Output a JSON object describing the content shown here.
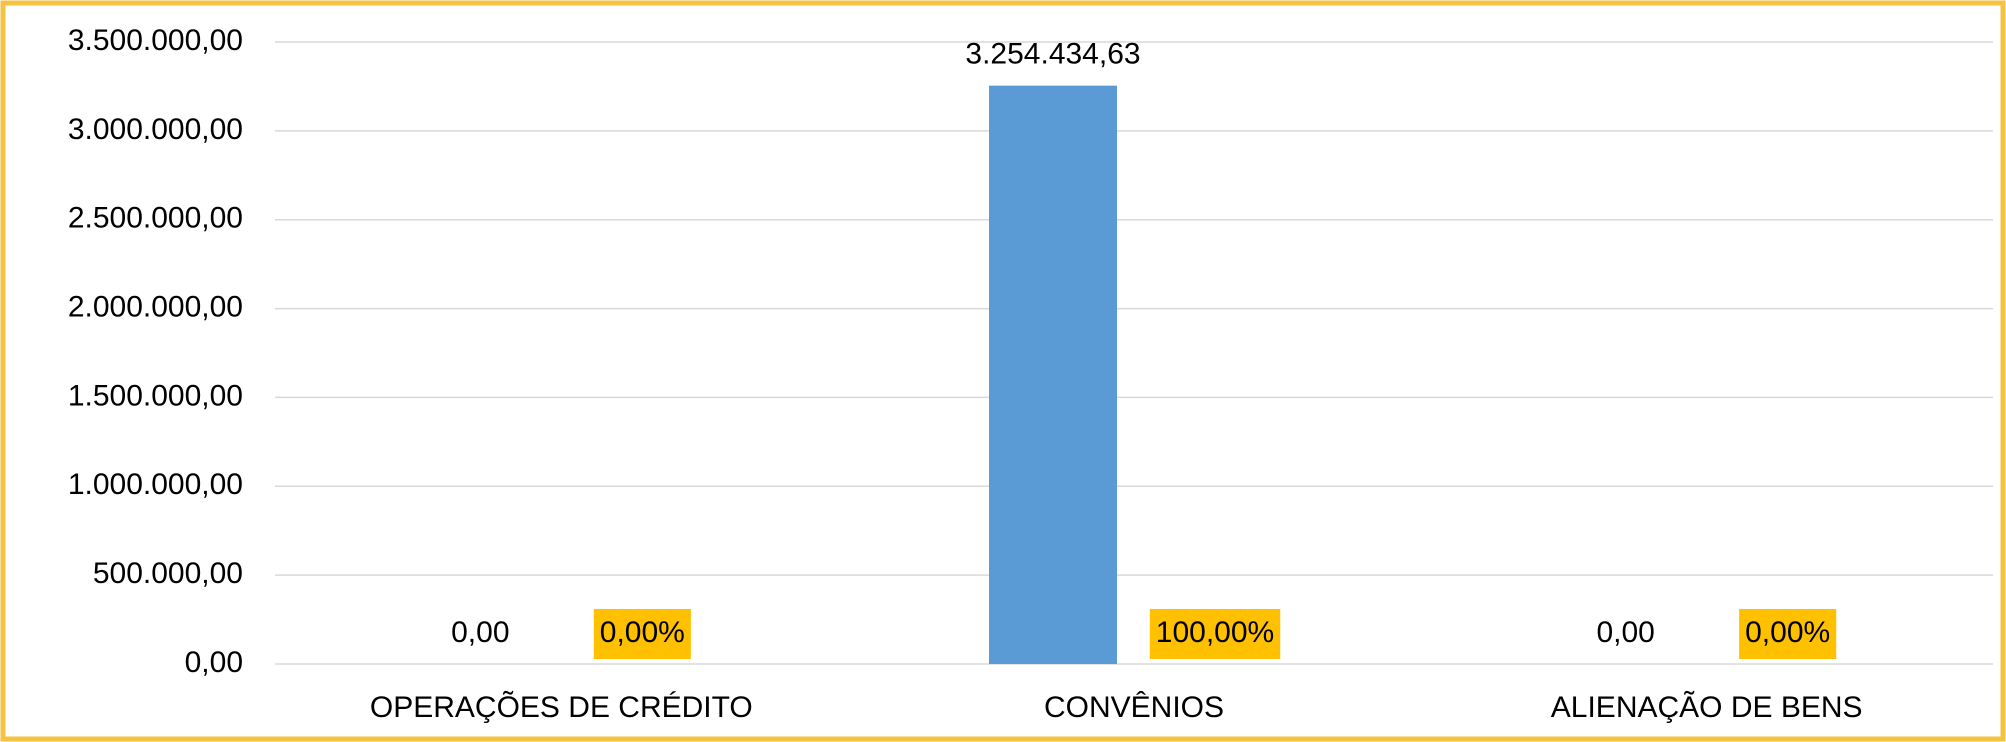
{
  "chart_data": {
    "type": "bar",
    "categories": [
      "OPERAÇÕES DE CRÉDITO",
      "CONVÊNIOS",
      "ALIENAÇÃO DE BENS"
    ],
    "series": [
      {
        "color": "#5B9BD5",
        "values": [
          0,
          3254434.63,
          0
        ],
        "value_labels": [
          "0,00",
          "3.254.434,63",
          "0,00"
        ]
      },
      {
        "color": "#FFC000",
        "values": [
          0,
          100,
          0
        ],
        "value_labels": [
          "0,00%",
          "100,00%",
          "0,00%"
        ]
      }
    ],
    "ylim": [
      0,
      3500000
    ],
    "yticks": [
      {
        "value": 0,
        "label": "0,00"
      },
      {
        "value": 500000,
        "label": "500.000,00"
      },
      {
        "value": 1000000,
        "label": "1.000.000,00"
      },
      {
        "value": 1500000,
        "label": "1.500.000,00"
      },
      {
        "value": 2000000,
        "label": "2.000.000,00"
      },
      {
        "value": 2500000,
        "label": "2.500.000,00"
      },
      {
        "value": 3000000,
        "label": "3.000.000,00"
      },
      {
        "value": 3500000,
        "label": "3.500.000,00"
      }
    ],
    "grid": true
  }
}
